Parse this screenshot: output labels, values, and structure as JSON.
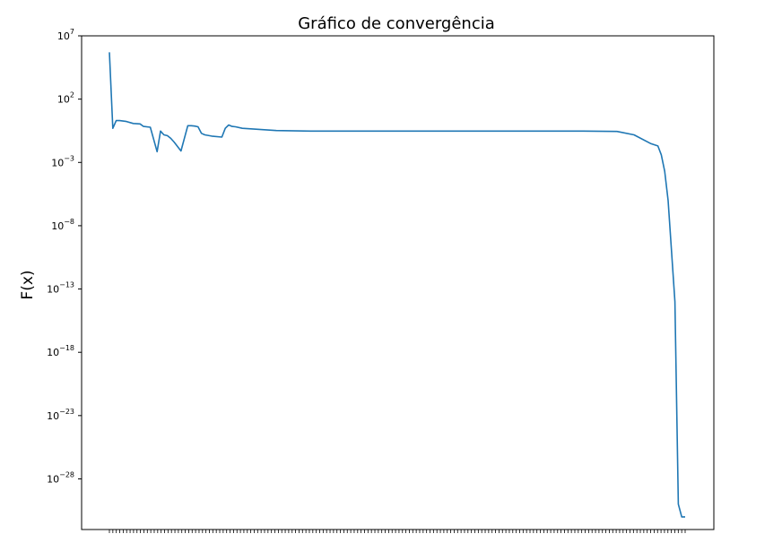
{
  "chart_data": {
    "type": "line",
    "title": "Gráfico de convergência",
    "xlabel": "",
    "ylabel": "F(x)",
    "yscale": "log",
    "ylim": [
      1e-32,
      10000000.0
    ],
    "grid": false,
    "y_ticks": [
      {
        "base": "10",
        "exp": "7",
        "value": 10000000.0
      },
      {
        "base": "10",
        "exp": "2",
        "value": 100.0
      },
      {
        "base": "10",
        "exp": "−3",
        "value": 0.001
      },
      {
        "base": "10",
        "exp": "−8",
        "value": 1e-08
      },
      {
        "base": "10",
        "exp": "−13",
        "value": 1e-13
      },
      {
        "base": "10",
        "exp": "−18",
        "value": 1e-18
      },
      {
        "base": "10",
        "exp": "−23",
        "value": 1e-23
      },
      {
        "base": "10",
        "exp": "−28",
        "value": 1e-28
      }
    ],
    "x_tick_count": 168,
    "series": [
      {
        "color": "#1f77b4",
        "x": [
          1,
          2,
          3,
          4,
          6,
          8,
          10,
          11,
          13,
          15,
          16,
          17,
          18,
          19,
          20,
          22,
          24,
          25,
          26,
          27,
          28,
          29,
          31,
          34,
          35,
          36,
          37,
          38,
          40,
          50,
          60,
          80,
          100,
          120,
          140,
          150,
          155,
          160,
          162,
          163,
          164,
          165,
          166,
          167,
          168,
          169,
          170
        ],
        "values": [
          500000.0,
          0.5,
          2.0,
          2.0,
          1.7,
          1.2,
          1.1,
          0.7,
          0.6,
          0.007,
          0.3,
          0.15,
          0.13,
          0.08,
          0.04,
          0.008,
          0.8,
          0.8,
          0.75,
          0.65,
          0.2,
          0.15,
          0.12,
          0.1,
          0.5,
          0.9,
          0.7,
          0.65,
          0.5,
          0.33,
          0.3,
          0.3,
          0.3,
          0.3,
          0.3,
          0.28,
          0.15,
          0.03,
          0.02,
          0.004,
          0.0002,
          1e-06,
          1e-10,
          1e-14,
          1e-30,
          1e-31,
          1e-31
        ]
      }
    ]
  }
}
